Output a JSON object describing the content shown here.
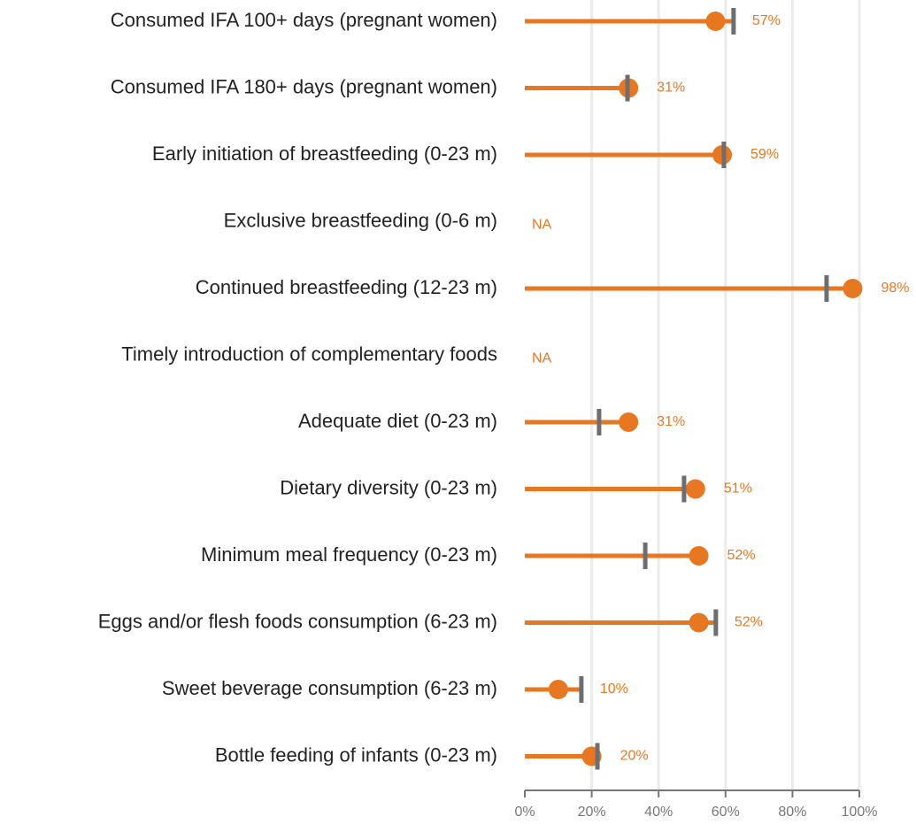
{
  "chart_data": {
    "type": "lollipop",
    "categories": [
      "Consumed IFA 100+ days (pregnant women)",
      "Consumed IFA 180+ days (pregnant women)",
      "Early initiation of breastfeeding (0-23 m)",
      "Exclusive breastfeeding (0-6 m)",
      "Continued breastfeeding (12-23 m)",
      "Timely introduction of complementary foods",
      "Adequate diet (0-23 m)",
      "Dietary diversity (0-23 m)",
      "Minimum meal frequency (0-23 m)",
      "Eggs and/or flesh foods consumption (6-23 m)",
      "Sweet beverage consumption (6-23 m)",
      "Bottle feeding of infants (0-23 m)"
    ],
    "series": [
      {
        "color": "#e87722",
        "values": [
          57,
          31,
          59,
          null,
          98,
          null,
          31,
          51,
          52,
          52,
          10,
          20
        ],
        "value_labels": [
          "57%",
          "31%",
          "59%",
          "NA",
          "98%",
          "NA",
          "31%",
          "51%",
          "52%",
          "52%",
          "10%",
          "20%"
        ]
      },
      {
        "color": "#6d6e71",
        "values": [
          62.4,
          30.7,
          59.5,
          null,
          90.2,
          null,
          22.2,
          47.6,
          36,
          57.1,
          16.9,
          21.7
        ]
      }
    ],
    "xlim": [
      0,
      100
    ],
    "xticks": [
      {
        "value": 0,
        "label": "0%"
      },
      {
        "value": 20,
        "label": "20%"
      },
      {
        "value": 40,
        "label": "40%"
      },
      {
        "value": 60,
        "label": "60%"
      },
      {
        "value": 80,
        "label": "80%"
      },
      {
        "value": 100,
        "label": "100%"
      }
    ],
    "grid": true
  }
}
